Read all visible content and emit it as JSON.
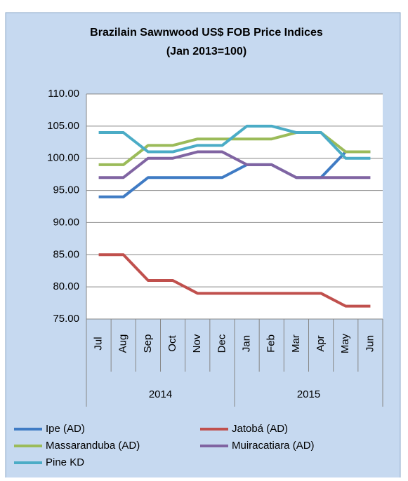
{
  "chart_data": {
    "type": "line",
    "title": "Brazilain Sawnwood US$ FOB Price Indices",
    "subtitle": "(Jan 2013=100)",
    "categories": [
      "Jul",
      "Aug",
      "Sep",
      "Oct",
      "Nov",
      "Dec",
      "Jan",
      "Feb",
      "Mar",
      "Apr",
      "May",
      "Jun"
    ],
    "groups": [
      {
        "label": "2014",
        "count": 6
      },
      {
        "label": "2015",
        "count": 6
      }
    ],
    "ylim": [
      75,
      110
    ],
    "yticks": [
      {
        "value": 75,
        "label": "75.00"
      },
      {
        "value": 80,
        "label": "80.00"
      },
      {
        "value": 85,
        "label": "85.00"
      },
      {
        "value": 90,
        "label": "90.00"
      },
      {
        "value": 95,
        "label": "95.00"
      },
      {
        "value": 100,
        "label": "100.00"
      },
      {
        "value": 105,
        "label": "105.00"
      },
      {
        "value": 110,
        "label": "110.00"
      }
    ],
    "grid": true,
    "legend": "bottom",
    "series": [
      {
        "name": "Ipe (AD)",
        "color": "#3f7bc4",
        "values": [
          94,
          94,
          97,
          97,
          97,
          97,
          99,
          99,
          97,
          97,
          101,
          101
        ]
      },
      {
        "name": "Jatobá (AD)",
        "color": "#c0504d",
        "values": [
          85,
          85,
          81,
          81,
          79,
          79,
          79,
          79,
          79,
          79,
          77,
          77
        ]
      },
      {
        "name": "Massaranduba (AD)",
        "color": "#9bbb59",
        "values": [
          99,
          99,
          102,
          102,
          103,
          103,
          103,
          103,
          104,
          104,
          101,
          101
        ]
      },
      {
        "name": "Muiracatiara (AD)",
        "color": "#8064a2",
        "values": [
          97,
          97,
          100,
          100,
          101,
          101,
          99,
          99,
          97,
          97,
          97,
          97
        ]
      },
      {
        "name": "Pine KD",
        "color": "#4bacc6",
        "values": [
          104,
          104,
          101,
          101,
          102,
          102,
          105,
          105,
          104,
          104,
          100,
          100
        ]
      }
    ]
  }
}
